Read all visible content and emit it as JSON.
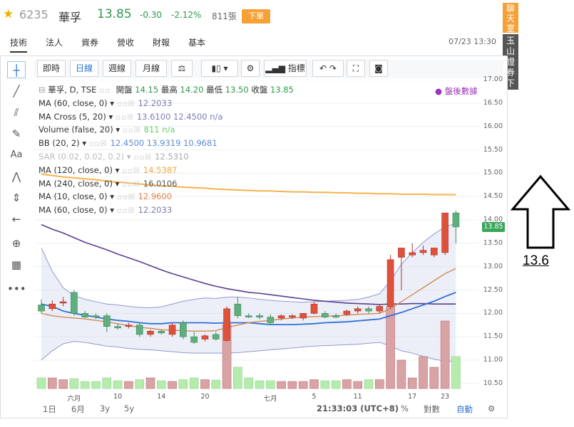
{
  "header": {
    "star_icon": "star-icon",
    "code": "6235",
    "name": "華孚",
    "price": "13.85",
    "change": "-0.30",
    "change_pct": "-2.12%",
    "volume": "811張",
    "order_button": "下單",
    "price_color": "#2e9a4e"
  },
  "tabs": [
    {
      "label": "技術",
      "active": true
    },
    {
      "label": "法人",
      "active": false
    },
    {
      "label": "資券",
      "active": false
    },
    {
      "label": "營收",
      "active": false
    },
    {
      "label": "財報",
      "active": false
    },
    {
      "label": "基本",
      "active": false
    }
  ],
  "datetime": "07/23 13:30",
  "side": {
    "chat": "聊天室",
    "securities": "玉山證券下單"
  },
  "toolbar": {
    "realtime": "即時",
    "daily": "日線",
    "weekly": "週線",
    "monthly": "月線",
    "indicators": "指標"
  },
  "legend": {
    "main": "華孚, D, TSE",
    "open_label": "開盤",
    "open": "14.15",
    "high_label": "最高",
    "high": "14.20",
    "low_label": "最低",
    "low": "13.50",
    "close_label": "收盤",
    "close": "13.85",
    "after_hours": "盤後數據",
    "rows": [
      {
        "label": "MA (60, close, 0)",
        "values": [
          "12.2033"
        ],
        "color": "#7b7bb8"
      },
      {
        "label": "MA Cross (5, 20)",
        "values": [
          "13.6100",
          "12.4500",
          "n/a"
        ],
        "color": "#7b7bb8"
      },
      {
        "label": "Volume (false, 20)",
        "values": [
          "811",
          "n/a"
        ],
        "color": "#66cc66"
      },
      {
        "label": "BB (20, 2)",
        "values": [
          "12.4500",
          "13.9319",
          "10.9681"
        ],
        "color": "#5b8bd6"
      },
      {
        "label": "SAR (0.02, 0.02, 0.2)",
        "values": [
          "12.5310"
        ],
        "color": "#aaaaaa"
      },
      {
        "label": "MA (120, close, 0)",
        "values": [
          "14.5387"
        ],
        "color": "#f4a63a"
      },
      {
        "label": "MA (240, close, 0)",
        "values": [
          "16.0106"
        ],
        "color": "#555555"
      },
      {
        "label": "MA (10, close, 0)",
        "values": [
          "12.9600"
        ],
        "color": "#e4804e"
      },
      {
        "label": "MA (60, close, 0)",
        "values": [
          "12.2033"
        ],
        "color": "#7b7bb8"
      }
    ]
  },
  "y_ticks": [
    "17.00",
    "16.50",
    "16.00",
    "15.50",
    "15.00",
    "14.50",
    "14.00",
    "13.50",
    "13.00",
    "12.50",
    "12.00",
    "11.50",
    "11.00",
    "10.50"
  ],
  "last_price_tag": "13.85",
  "x_ticks": [
    "六月",
    "10",
    "14",
    "20",
    "七月",
    "5",
    "11",
    "17",
    "23"
  ],
  "bottom": {
    "ranges": [
      "1日",
      "6月",
      "3y",
      "5y"
    ],
    "time": "21:33:03 (UTC+8)",
    "pct": "%",
    "log": "對數",
    "auto": "自動"
  },
  "annotation": "13.6",
  "colors": {
    "up": "#e0513a",
    "down": "#5fae7d",
    "ma120": "#f7b24d",
    "ma240": "#5b3f8f",
    "bb": "#2f6fd6"
  },
  "chart_data": {
    "type": "bar",
    "ohlc": [
      {
        "o": 12.18,
        "h": 12.3,
        "l": 12.0,
        "c": 12.05
      },
      {
        "o": 12.1,
        "h": 12.28,
        "l": 12.05,
        "c": 12.2
      },
      {
        "o": 12.22,
        "h": 12.35,
        "l": 12.15,
        "c": 12.25
      },
      {
        "o": 12.45,
        "h": 12.5,
        "l": 11.95,
        "c": 12.0
      },
      {
        "o": 12.0,
        "h": 12.05,
        "l": 11.9,
        "c": 11.92
      },
      {
        "o": 11.95,
        "h": 12.0,
        "l": 11.88,
        "c": 11.92
      },
      {
        "o": 11.95,
        "h": 12.0,
        "l": 11.6,
        "c": 11.72
      },
      {
        "o": 11.72,
        "h": 11.78,
        "l": 11.65,
        "c": 11.7
      },
      {
        "o": 11.72,
        "h": 11.8,
        "l": 11.68,
        "c": 11.75
      },
      {
        "o": 11.75,
        "h": 11.8,
        "l": 11.5,
        "c": 11.55
      },
      {
        "o": 11.55,
        "h": 11.65,
        "l": 11.5,
        "c": 11.62
      },
      {
        "o": 11.62,
        "h": 11.65,
        "l": 11.55,
        "c": 11.58
      },
      {
        "o": 11.55,
        "h": 11.8,
        "l": 11.5,
        "c": 11.75
      },
      {
        "o": 11.8,
        "h": 11.85,
        "l": 11.45,
        "c": 11.5
      },
      {
        "o": 11.5,
        "h": 11.6,
        "l": 11.35,
        "c": 11.38
      },
      {
        "o": 11.45,
        "h": 11.55,
        "l": 11.4,
        "c": 11.52
      },
      {
        "o": 11.55,
        "h": 11.6,
        "l": 11.42,
        "c": 11.45
      },
      {
        "o": 11.42,
        "h": 12.15,
        "l": 11.4,
        "c": 12.1
      },
      {
        "o": 12.2,
        "h": 12.35,
        "l": 11.9,
        "c": 11.95
      },
      {
        "o": 11.95,
        "h": 12.0,
        "l": 11.9,
        "c": 11.93
      },
      {
        "o": 11.95,
        "h": 12.0,
        "l": 11.88,
        "c": 11.93
      },
      {
        "o": 11.92,
        "h": 11.98,
        "l": 11.75,
        "c": 11.8
      },
      {
        "o": 11.9,
        "h": 11.98,
        "l": 11.85,
        "c": 11.95
      },
      {
        "o": 11.92,
        "h": 11.98,
        "l": 11.88,
        "c": 11.95
      },
      {
        "o": 11.9,
        "h": 12.0,
        "l": 11.85,
        "c": 12.0
      },
      {
        "o": 12.0,
        "h": 12.25,
        "l": 11.98,
        "c": 12.2
      },
      {
        "o": 12.0,
        "h": 12.05,
        "l": 11.9,
        "c": 11.92
      },
      {
        "o": 11.95,
        "h": 12.0,
        "l": 11.9,
        "c": 11.93
      },
      {
        "o": 11.98,
        "h": 12.08,
        "l": 11.95,
        "c": 12.05
      },
      {
        "o": 12.05,
        "h": 12.15,
        "l": 12.0,
        "c": 12.1
      },
      {
        "o": 12.1,
        "h": 12.15,
        "l": 12.0,
        "c": 12.05
      },
      {
        "o": 12.05,
        "h": 12.2,
        "l": 12.0,
        "c": 12.15
      },
      {
        "o": 12.15,
        "h": 13.25,
        "l": 12.1,
        "c": 13.15
      },
      {
        "o": 13.2,
        "h": 13.4,
        "l": 12.5,
        "c": 13.4
      },
      {
        "o": 13.25,
        "h": 13.5,
        "l": 13.2,
        "c": 13.3
      },
      {
        "o": 13.3,
        "h": 13.45,
        "l": 13.25,
        "c": 13.35
      },
      {
        "o": 13.25,
        "h": 13.4,
        "l": 13.2,
        "c": 13.4
      },
      {
        "o": 13.3,
        "h": 14.15,
        "l": 13.25,
        "c": 14.15
      },
      {
        "o": 14.15,
        "h": 14.2,
        "l": 13.5,
        "c": 13.85
      }
    ],
    "volume": [
      0.3,
      0.3,
      0.25,
      0.28,
      0.2,
      0.2,
      0.3,
      0.22,
      0.2,
      0.25,
      0.3,
      0.22,
      0.2,
      0.25,
      0.3,
      0.25,
      0.24,
      1.8,
      0.6,
      0.3,
      0.22,
      0.22,
      0.2,
      0.2,
      0.2,
      0.25,
      0.22,
      0.22,
      0.25,
      0.2,
      0.25,
      0.25,
      2.3,
      0.8,
      0.3,
      0.9,
      0.6,
      1.9,
      0.9
    ],
    "ma120": [
      14.98,
      14.95,
      14.92,
      14.9,
      14.88,
      14.86,
      14.83,
      14.81,
      14.79,
      14.77,
      14.75,
      14.73,
      14.72,
      14.7,
      14.69,
      14.68,
      14.66,
      14.65,
      14.64,
      14.63,
      14.62,
      14.62,
      14.61,
      14.6,
      14.6,
      14.59,
      14.59,
      14.58,
      14.58,
      14.57,
      14.57,
      14.56,
      14.56,
      14.55,
      14.55,
      14.55,
      14.54,
      14.54,
      14.54
    ],
    "ma60": [
      13.9,
      13.8,
      13.72,
      13.62,
      13.52,
      13.44,
      13.36,
      13.27,
      13.19,
      13.11,
      13.02,
      12.93,
      12.85,
      12.78,
      12.71,
      12.64,
      12.58,
      12.53,
      12.49,
      12.45,
      12.43,
      12.4,
      12.37,
      12.34,
      12.31,
      12.28,
      12.26,
      12.24,
      12.22,
      12.21,
      12.2,
      12.19,
      12.2,
      12.2,
      12.21,
      12.21,
      12.2,
      12.2,
      12.2
    ],
    "ma20": [
      12.2,
      12.15,
      12.05,
      12.0,
      11.96,
      11.92,
      11.88,
      11.85,
      11.83,
      11.8,
      11.78,
      11.78,
      11.8,
      11.8,
      11.8,
      11.8,
      11.79,
      11.8,
      11.8,
      11.8,
      11.78,
      11.76,
      11.76,
      11.76,
      11.77,
      11.78,
      11.8,
      11.81,
      11.82,
      11.84,
      11.86,
      11.88,
      11.95,
      12.02,
      12.1,
      12.18,
      12.26,
      12.36,
      12.45
    ],
    "ma10": [
      12.0,
      11.95,
      11.92,
      11.9,
      11.88,
      11.85,
      11.82,
      11.78,
      11.74,
      11.7,
      11.68,
      11.65,
      11.64,
      11.63,
      11.62,
      11.62,
      11.63,
      11.7,
      11.75,
      11.8,
      11.83,
      11.85,
      11.88,
      11.9,
      11.92,
      11.93,
      11.94,
      11.95,
      11.96,
      11.98,
      11.99,
      12.0,
      12.1,
      12.25,
      12.4,
      12.55,
      12.7,
      12.85,
      12.96
    ],
    "bb_upper": [
      13.4,
      12.9,
      12.55,
      12.38,
      12.3,
      12.25,
      12.2,
      12.18,
      12.15,
      12.13,
      12.12,
      12.14,
      12.2,
      12.26,
      12.3,
      12.33,
      12.32,
      12.35,
      12.35,
      12.33,
      12.3,
      12.28,
      12.26,
      12.25,
      12.24,
      12.25,
      12.26,
      12.27,
      12.28,
      12.3,
      12.35,
      12.42,
      12.7,
      13.05,
      13.3,
      13.52,
      13.7,
      13.85,
      13.93
    ],
    "bb_lower": [
      11.0,
      11.2,
      11.35,
      11.4,
      11.38,
      11.34,
      11.3,
      11.28,
      11.25,
      11.23,
      11.22,
      11.2,
      11.18,
      11.16,
      11.15,
      11.15,
      11.15,
      11.15,
      11.16,
      11.18,
      11.2,
      11.22,
      11.24,
      11.26,
      11.28,
      11.3,
      11.31,
      11.32,
      11.33,
      11.34,
      11.36,
      11.38,
      11.3,
      11.2,
      11.15,
      11.08,
      11.02,
      10.98,
      10.97
    ],
    "ylim": [
      10.3,
      17.0
    ]
  }
}
